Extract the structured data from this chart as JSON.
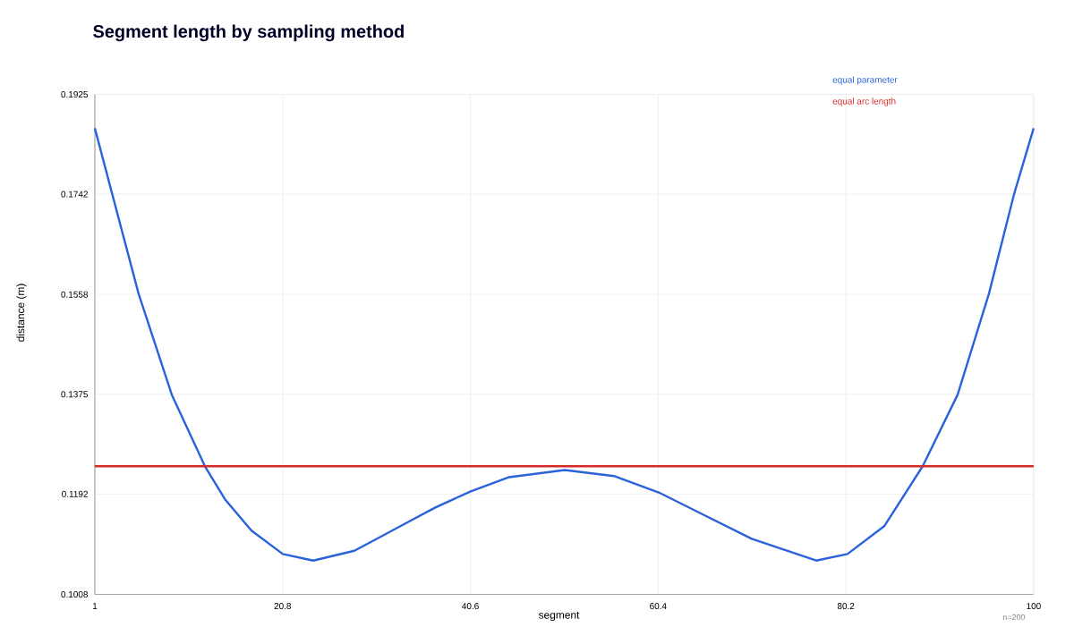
{
  "chart_data": {
    "type": "line",
    "title": "Segment length by sampling method",
    "xlabel": "segment",
    "ylabel": "distance (m)",
    "annotations": [
      "n=200"
    ],
    "xlim": [
      1,
      100
    ],
    "xticks": [
      1,
      20.8,
      40.6,
      60.4,
      80.2,
      100
    ],
    "ylim": [
      0.1008,
      0.1925
    ],
    "yticks": [
      0.1008,
      0.1192,
      0.1375,
      0.1558,
      0.1742,
      0.1925
    ],
    "grid": true,
    "legend": "top right",
    "series": [
      {
        "name": "equal parameter",
        "color": "#2a62dc",
        "x": [
          1,
          2.85,
          5.62,
          9.12,
          12.61,
          14.74,
          17.52,
          20.82,
          24.03,
          28.37,
          30.54,
          33.75,
          36.86,
          40.64,
          44.7,
          50.55,
          55.74,
          60.46,
          65.18,
          70.27,
          77.07,
          80.37,
          84.24,
          88.3,
          91.98,
          95.28,
          97.92,
          100
        ],
        "values": [
          0.1863,
          0.1741,
          0.1559,
          0.1374,
          0.1243,
          0.1182,
          0.1125,
          0.1082,
          0.107,
          0.1088,
          0.1108,
          0.1138,
          0.1167,
          0.1197,
          0.1223,
          0.1236,
          0.1225,
          0.1195,
          0.1154,
          0.111,
          0.107,
          0.1082,
          0.1133,
          0.1243,
          0.1374,
          0.1559,
          0.1741,
          0.1863
        ]
      },
      {
        "name": "equal arc length",
        "color": "#d62b2b",
        "x": [
          1,
          100
        ],
        "values": [
          0.1243,
          0.1243
        ]
      }
    ]
  }
}
